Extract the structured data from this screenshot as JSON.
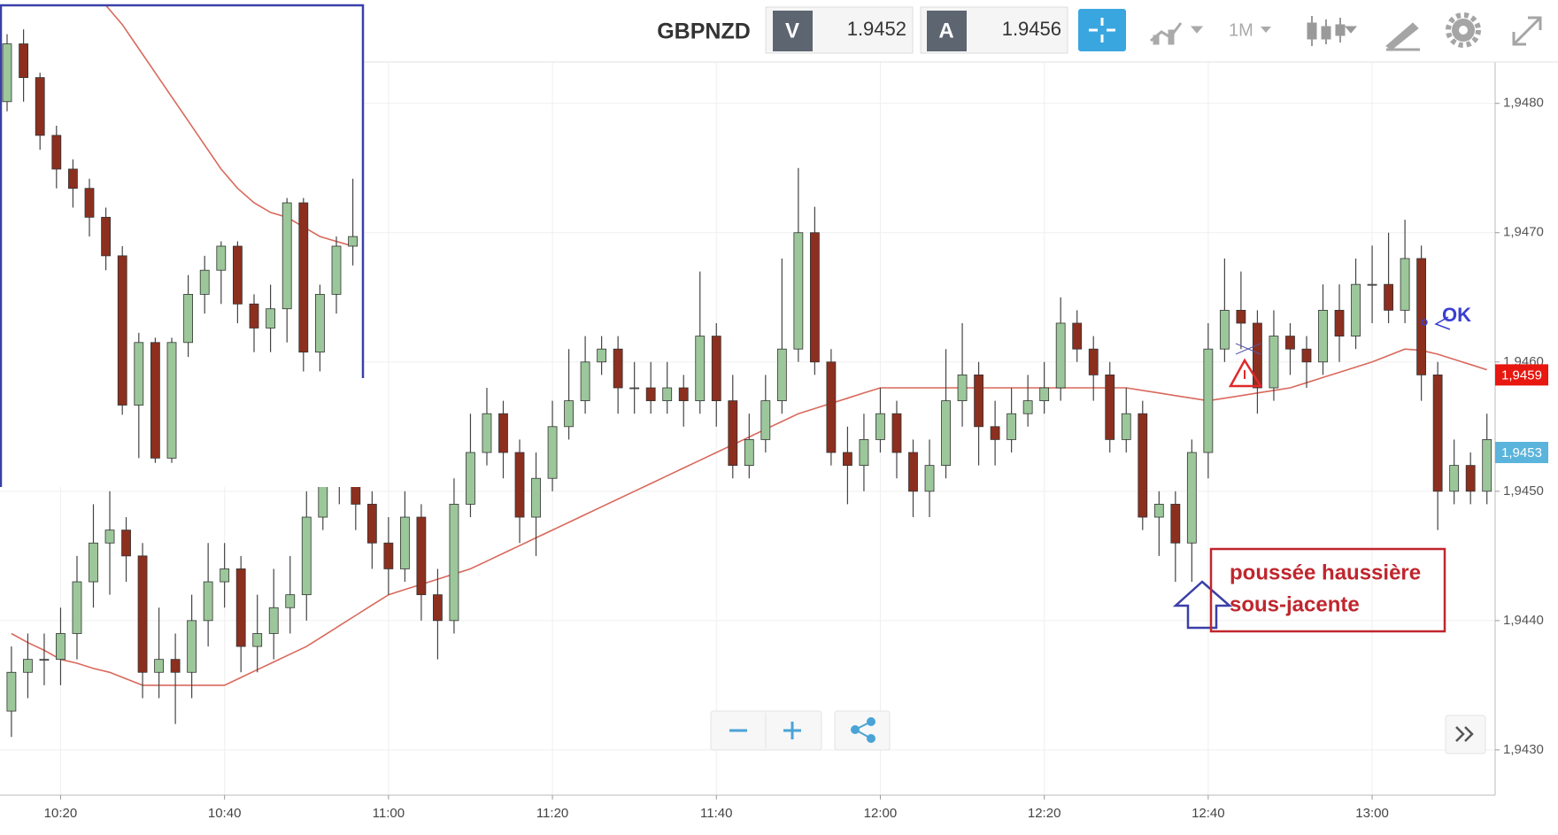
{
  "header": {
    "symbol": "GBPNZD",
    "bid_label": "V",
    "bid": "1.9452",
    "ask_label": "A",
    "ask": "1.9456",
    "timeframe": "1M"
  },
  "chart_data": {
    "type": "candlestick",
    "x": [
      "10:14",
      "10:16",
      "10:18",
      "10:20",
      "10:22",
      "10:24",
      "10:26",
      "10:28",
      "10:30",
      "10:32",
      "10:34",
      "10:36",
      "10:38",
      "10:40",
      "10:42",
      "10:44",
      "10:46",
      "10:48",
      "10:50",
      "10:52",
      "10:54",
      "10:56",
      "10:58",
      "11:00",
      "11:02",
      "11:04",
      "11:06",
      "11:08",
      "11:10",
      "11:12",
      "11:14",
      "11:16",
      "11:18",
      "11:20",
      "11:22",
      "11:24",
      "11:26",
      "11:28",
      "11:30",
      "11:32",
      "11:34",
      "11:36",
      "11:38",
      "11:40",
      "11:42",
      "11:44",
      "11:46",
      "11:48",
      "11:50",
      "11:52",
      "11:54",
      "11:56",
      "11:58",
      "12:00",
      "12:02",
      "12:04",
      "12:06",
      "12:08",
      "12:10",
      "12:12",
      "12:14",
      "12:16",
      "12:18",
      "12:20",
      "12:22",
      "12:24",
      "12:26",
      "12:28",
      "12:30",
      "12:32",
      "12:34",
      "12:36",
      "12:38",
      "12:40",
      "12:42",
      "12:44",
      "12:46",
      "12:48",
      "12:50",
      "12:52",
      "12:54",
      "12:56",
      "12:58",
      "13:00",
      "13:02",
      "13:04",
      "13:06",
      "13:08",
      "13:10",
      "13:12",
      "13:14"
    ],
    "open": [
      1.9433,
      1.9436,
      1.9437,
      1.9437,
      1.9439,
      1.9443,
      1.9446,
      1.9447,
      1.9445,
      1.9436,
      1.9437,
      1.9436,
      1.944,
      1.9443,
      1.9444,
      1.9438,
      1.9439,
      1.9441,
      1.9442,
      1.9448,
      1.9456,
      1.9451,
      1.9449,
      1.9446,
      1.9444,
      1.9448,
      1.9442,
      1.944,
      1.9449,
      1.9453,
      1.9456,
      1.9453,
      1.9448,
      1.9451,
      1.9455,
      1.9457,
      1.946,
      1.9461,
      1.9458,
      1.9458,
      1.9457,
      1.9458,
      1.9457,
      1.9462,
      1.9457,
      1.9452,
      1.9454,
      1.9457,
      1.9461,
      1.947,
      1.946,
      1.9453,
      1.9452,
      1.9454,
      1.9456,
      1.9453,
      1.945,
      1.9452,
      1.9457,
      1.9459,
      1.9455,
      1.9454,
      1.9456,
      1.9457,
      1.9458,
      1.9463,
      1.9461,
      1.9459,
      1.9454,
      1.9456,
      1.9448,
      1.9449,
      1.9446,
      1.9453,
      1.9461,
      1.9464,
      1.9463,
      1.9458,
      1.9462,
      1.9461,
      1.946,
      1.9464,
      1.9462,
      1.9466,
      1.9466,
      1.9464,
      1.9468,
      1.9459,
      1.945,
      1.9452,
      1.945
    ],
    "high": [
      1.9438,
      1.9439,
      1.9439,
      1.9441,
      1.9445,
      1.9449,
      1.945,
      1.9448,
      1.9446,
      1.9441,
      1.9439,
      1.9442,
      1.9446,
      1.9446,
      1.9445,
      1.9442,
      1.9444,
      1.9445,
      1.945,
      1.9457,
      1.9457,
      1.9453,
      1.945,
      1.9448,
      1.945,
      1.9449,
      1.9444,
      1.9451,
      1.9456,
      1.9458,
      1.9457,
      1.9454,
      1.9453,
      1.9457,
      1.9461,
      1.9462,
      1.9462,
      1.9462,
      1.946,
      1.946,
      1.946,
      1.9459,
      1.9467,
      1.9463,
      1.9459,
      1.9456,
      1.9459,
      1.9468,
      1.9475,
      1.9472,
      1.9461,
      1.9455,
      1.9456,
      1.9458,
      1.9457,
      1.9454,
      1.9454,
      1.9461,
      1.9463,
      1.946,
      1.9457,
      1.9458,
      1.9459,
      1.946,
      1.9465,
      1.9464,
      1.9462,
      1.946,
      1.9458,
      1.9457,
      1.945,
      1.945,
      1.9454,
      1.9463,
      1.9468,
      1.9467,
      1.9464,
      1.9464,
      1.9463,
      1.9462,
      1.9466,
      1.9466,
      1.9468,
      1.9469,
      1.947,
      1.9471,
      1.9469,
      1.946,
      1.9454,
      1.9453,
      1.9456
    ],
    "low": [
      1.9431,
      1.9434,
      1.9435,
      1.9435,
      1.9437,
      1.9441,
      1.9442,
      1.9443,
      1.9434,
      1.9434,
      1.9432,
      1.9434,
      1.9438,
      1.9441,
      1.9436,
      1.9436,
      1.9437,
      1.9439,
      1.944,
      1.9447,
      1.9449,
      1.9447,
      1.9444,
      1.9442,
      1.9443,
      1.944,
      1.9437,
      1.9439,
      1.9448,
      1.9452,
      1.9451,
      1.9446,
      1.9445,
      1.945,
      1.9454,
      1.9456,
      1.9459,
      1.9456,
      1.9456,
      1.9456,
      1.9456,
      1.9455,
      1.9456,
      1.9455,
      1.9451,
      1.9451,
      1.9453,
      1.9456,
      1.946,
      1.9459,
      1.9452,
      1.9449,
      1.945,
      1.9453,
      1.9451,
      1.9448,
      1.9448,
      1.9451,
      1.9455,
      1.9452,
      1.9452,
      1.9453,
      1.9455,
      1.9456,
      1.9457,
      1.946,
      1.9457,
      1.9453,
      1.9453,
      1.9447,
      1.9445,
      1.9443,
      1.9443,
      1.9451,
      1.946,
      1.9461,
      1.9456,
      1.9457,
      1.9459,
      1.9458,
      1.9459,
      1.946,
      1.9461,
      1.9463,
      1.9463,
      1.9463,
      1.9457,
      1.9447,
      1.9449,
      1.9449,
      1.9449
    ],
    "close": [
      1.9436,
      1.9437,
      1.9437,
      1.9439,
      1.9443,
      1.9446,
      1.9447,
      1.9445,
      1.9436,
      1.9437,
      1.9436,
      1.944,
      1.9443,
      1.9444,
      1.9438,
      1.9439,
      1.9441,
      1.9442,
      1.9448,
      1.9456,
      1.9451,
      1.9449,
      1.9446,
      1.9444,
      1.9448,
      1.9442,
      1.944,
      1.9449,
      1.9453,
      1.9456,
      1.9453,
      1.9448,
      1.9451,
      1.9455,
      1.9457,
      1.946,
      1.9461,
      1.9458,
      1.9458,
      1.9457,
      1.9458,
      1.9457,
      1.9462,
      1.9457,
      1.9452,
      1.9454,
      1.9457,
      1.9461,
      1.947,
      1.946,
      1.9453,
      1.9452,
      1.9454,
      1.9456,
      1.9453,
      1.945,
      1.9452,
      1.9457,
      1.9459,
      1.9455,
      1.9454,
      1.9456,
      1.9457,
      1.9458,
      1.9463,
      1.9461,
      1.9459,
      1.9454,
      1.9456,
      1.9448,
      1.9449,
      1.9446,
      1.9453,
      1.9461,
      1.9464,
      1.9463,
      1.9458,
      1.9462,
      1.9461,
      1.946,
      1.9464,
      1.9462,
      1.9466,
      1.9466,
      1.9464,
      1.9468,
      1.9459,
      1.945,
      1.9452,
      1.945,
      1.9454
    ],
    "up_color": "#9cc79a",
    "down_color": "#8c2f1f",
    "moving_average": {
      "color": "#d9695c",
      "values": [
        1.9439,
        1.94383,
        1.94377,
        1.9437,
        1.94367,
        1.94363,
        1.9436,
        1.94355,
        1.9435,
        1.9435,
        1.9435,
        1.9435,
        1.9435,
        1.9435,
        1.94356,
        1.94362,
        1.94368,
        1.94374,
        1.9438,
        1.94388,
        1.94396,
        1.94404,
        1.94412,
        1.9442,
        1.94424,
        1.94428,
        1.94432,
        1.94436,
        1.9444,
        1.94446,
        1.94452,
        1.94458,
        1.94464,
        1.9447,
        1.94476,
        1.94482,
        1.94488,
        1.94494,
        1.945,
        1.94506,
        1.94512,
        1.94518,
        1.94524,
        1.9453,
        1.94536,
        1.94542,
        1.94548,
        1.94554,
        1.9456,
        1.94564,
        1.94568,
        1.94572,
        1.94576,
        1.9458,
        1.9458,
        1.9458,
        1.9458,
        1.9458,
        1.9458,
        1.9458,
        1.9458,
        1.9458,
        1.9458,
        1.9458,
        1.9458,
        1.9458,
        1.9458,
        1.9458,
        1.9458,
        1.94578,
        1.94576,
        1.94574,
        1.94572,
        1.9457,
        1.94572,
        1.94574,
        1.94576,
        1.94578,
        1.9458,
        1.94584,
        1.94588,
        1.94592,
        1.94596,
        1.946,
        1.94605,
        1.9461,
        1.94609,
        1.94606,
        1.94602,
        1.94598,
        1.94594
      ]
    },
    "ylim": [
      1.94265,
      1.94832
    ],
    "yticks": [
      {
        "value": 1.943,
        "label": "1,9430"
      },
      {
        "value": 1.944,
        "label": "1,9440"
      },
      {
        "value": 1.945,
        "label": "1,9450"
      },
      {
        "value": 1.946,
        "label": "1,9460"
      },
      {
        "value": 1.947,
        "label": "1,9470"
      },
      {
        "value": 1.948,
        "label": "1,9480"
      }
    ],
    "xticks": [
      "10:20",
      "10:40",
      "11:00",
      "11:20",
      "11:40",
      "12:00",
      "12:20",
      "12:40",
      "13:00"
    ],
    "grid": true,
    "price_labels": [
      {
        "value": 1.9459,
        "label": "1,9459",
        "color": "#e8170f"
      },
      {
        "value": 1.9453,
        "label": "1,9453",
        "color": "#5ab4dc"
      }
    ],
    "annotations": {
      "box_lines": [
        "poussée haussière",
        "sous-jacente"
      ],
      "ok": "OK"
    },
    "inset": {
      "type": "candlestick",
      "open": [
        80,
        92,
        85,
        73,
        66,
        62,
        56,
        48,
        17,
        30,
        6,
        30,
        40,
        45,
        50,
        38,
        33,
        37,
        59,
        28,
        40,
        50
      ],
      "high": [
        94,
        95,
        86,
        75,
        68,
        64,
        58,
        50,
        32,
        31,
        31,
        44,
        48,
        51,
        51,
        40,
        42,
        60,
        60,
        42,
        52,
        64
      ],
      "low": [
        78,
        80,
        70,
        62,
        58,
        52,
        45,
        15,
        6,
        5,
        5,
        27,
        36,
        38,
        34,
        28,
        28,
        30,
        24,
        24,
        36,
        46
      ],
      "close": [
        92,
        85,
        73,
        66,
        62,
        56,
        48,
        17,
        30,
        6,
        30,
        40,
        45,
        50,
        38,
        33,
        37,
        59,
        28,
        40,
        50,
        52
      ],
      "moving_average": [
        null,
        null,
        null,
        null,
        null,
        null,
        100,
        96,
        91,
        86,
        81,
        76,
        71,
        66,
        62,
        59,
        57,
        56,
        54,
        52,
        51,
        50
      ],
      "ylim": [
        0,
        100
      ]
    }
  }
}
